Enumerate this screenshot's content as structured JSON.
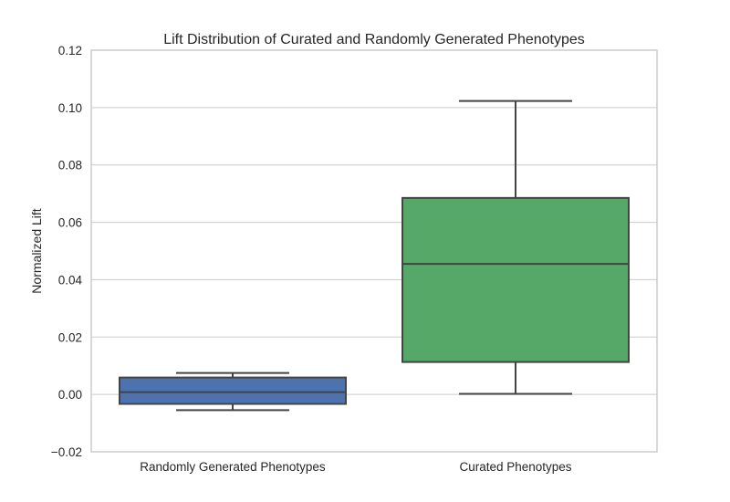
{
  "chart_data": {
    "type": "box",
    "title": "Lift Distribution of Curated and Randomly Generated Phenotypes",
    "xlabel": "",
    "ylabel": "Normalized Lift",
    "ylim": [
      -0.02,
      0.12
    ],
    "yticks": [
      -0.02,
      0.0,
      0.02,
      0.04,
      0.06,
      0.08,
      0.1,
      0.12
    ],
    "ytick_labels": [
      "−0.02",
      "0.00",
      "0.02",
      "0.04",
      "0.06",
      "0.08",
      "0.10",
      "0.12"
    ],
    "grid": true,
    "categories": [
      "Randomly Generated Phenotypes",
      "Curated Phenotypes"
    ],
    "boxes": [
      {
        "category": "Randomly Generated Phenotypes",
        "whisker_low": -0.0055,
        "q1": -0.0033,
        "median": 0.0008,
        "q3": 0.0059,
        "whisker_high": 0.0075,
        "color": "#4c72b0"
      },
      {
        "category": "Curated Phenotypes",
        "whisker_low": 0.0002,
        "q1": 0.0113,
        "median": 0.0455,
        "q3": 0.0685,
        "whisker_high": 0.1023,
        "color": "#55a868"
      }
    ],
    "line_color": "#444444"
  }
}
